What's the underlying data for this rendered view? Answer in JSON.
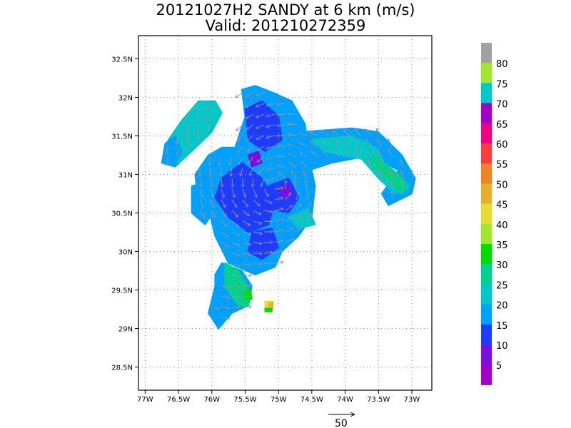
{
  "header": {
    "title": "20121027H2 SANDY at 6 km (m/s)",
    "valid": "Valid: 201210272359"
  },
  "map": {
    "lat_labels": [
      "32.5N",
      "32N",
      "31.5N",
      "31N",
      "30.5N",
      "30N",
      "29.5N",
      "29N",
      "28.5N"
    ],
    "lon_labels": [
      "77W",
      "76.5W",
      "76W",
      "75.5W",
      "75W",
      "74.5W",
      "74W",
      "73.5W",
      "73W"
    ],
    "lat_values": [
      32.5,
      32,
      31.5,
      31,
      30.5,
      30,
      29.5,
      29,
      28.5
    ],
    "lon_values": [
      -77,
      -76.5,
      -76,
      -75.5,
      -75,
      -74.5,
      -74,
      -73.5,
      -73
    ],
    "lat_range": [
      28.2,
      32.8
    ],
    "lon_range": [
      -77.1,
      -72.7
    ],
    "grid": "dotted",
    "wind_vectors": "gray arrows",
    "vector_color": "#9a9a9a"
  },
  "colorbar": {
    "labels": [
      "5",
      "10",
      "15",
      "20",
      "25",
      "30",
      "35",
      "40",
      "45",
      "50",
      "55",
      "60",
      "65",
      "70",
      "75",
      "80"
    ],
    "colors": [
      "#a000c8",
      "#7a10e0",
      "#1e3cff",
      "#00a0ff",
      "#00c8c8",
      "#00d28c",
      "#00dc00",
      "#a0e632",
      "#e6dc32",
      "#e6af2d",
      "#f08228",
      "#fa3c3c",
      "#f00082",
      "#a000c8",
      "#00c8c8",
      "#a0e632",
      "#a0a0a0"
    ]
  },
  "reference_vector": {
    "label": "50"
  }
}
